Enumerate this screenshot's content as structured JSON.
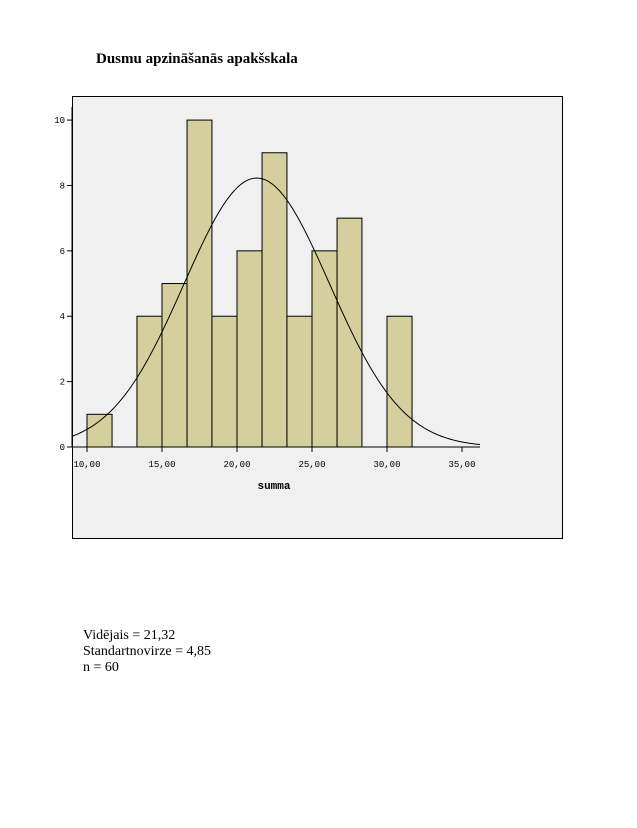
{
  "title": "Dusmu apzināšanās apakšskala",
  "chart_data": {
    "type": "bar",
    "xlabel": "summa",
    "ylabel": "",
    "xlim": [
      9,
      36.2
    ],
    "ylim": [
      0,
      10.4
    ],
    "xticks": [
      10,
      15,
      20,
      25,
      30,
      35
    ],
    "xtick_labels": [
      "10,00",
      "15,00",
      "20,00",
      "25,00",
      "30,00",
      "35,00"
    ],
    "yticks": [
      0,
      2,
      4,
      6,
      8,
      10
    ],
    "ytick_labels": [
      "0",
      "2",
      "4",
      "6",
      "8",
      "10"
    ],
    "bar_color": "#d4cf9d",
    "bins": [
      {
        "start": 10,
        "end": 11.67,
        "count": 1
      },
      {
        "start": 11.67,
        "end": 13.33,
        "count": 0
      },
      {
        "start": 13.33,
        "end": 15,
        "count": 4
      },
      {
        "start": 15,
        "end": 16.67,
        "count": 5
      },
      {
        "start": 16.67,
        "end": 18.33,
        "count": 10
      },
      {
        "start": 18.33,
        "end": 20,
        "count": 4
      },
      {
        "start": 20,
        "end": 21.67,
        "count": 6
      },
      {
        "start": 21.67,
        "end": 23.33,
        "count": 9
      },
      {
        "start": 23.33,
        "end": 25,
        "count": 4
      },
      {
        "start": 25,
        "end": 26.67,
        "count": 6
      },
      {
        "start": 26.67,
        "end": 28.33,
        "count": 7
      },
      {
        "start": 28.33,
        "end": 30,
        "count": 0
      },
      {
        "start": 30,
        "end": 31.67,
        "count": 4
      }
    ],
    "normal_curve": {
      "mean": 21.32,
      "sd": 4.85,
      "n": 60,
      "bin_width": 1.667
    },
    "grid": false,
    "legend": "none"
  },
  "stats": {
    "mean": "Vidējais = 21,32",
    "sd": "Standartnovirze = 4,85",
    "n": "n = 60"
  }
}
